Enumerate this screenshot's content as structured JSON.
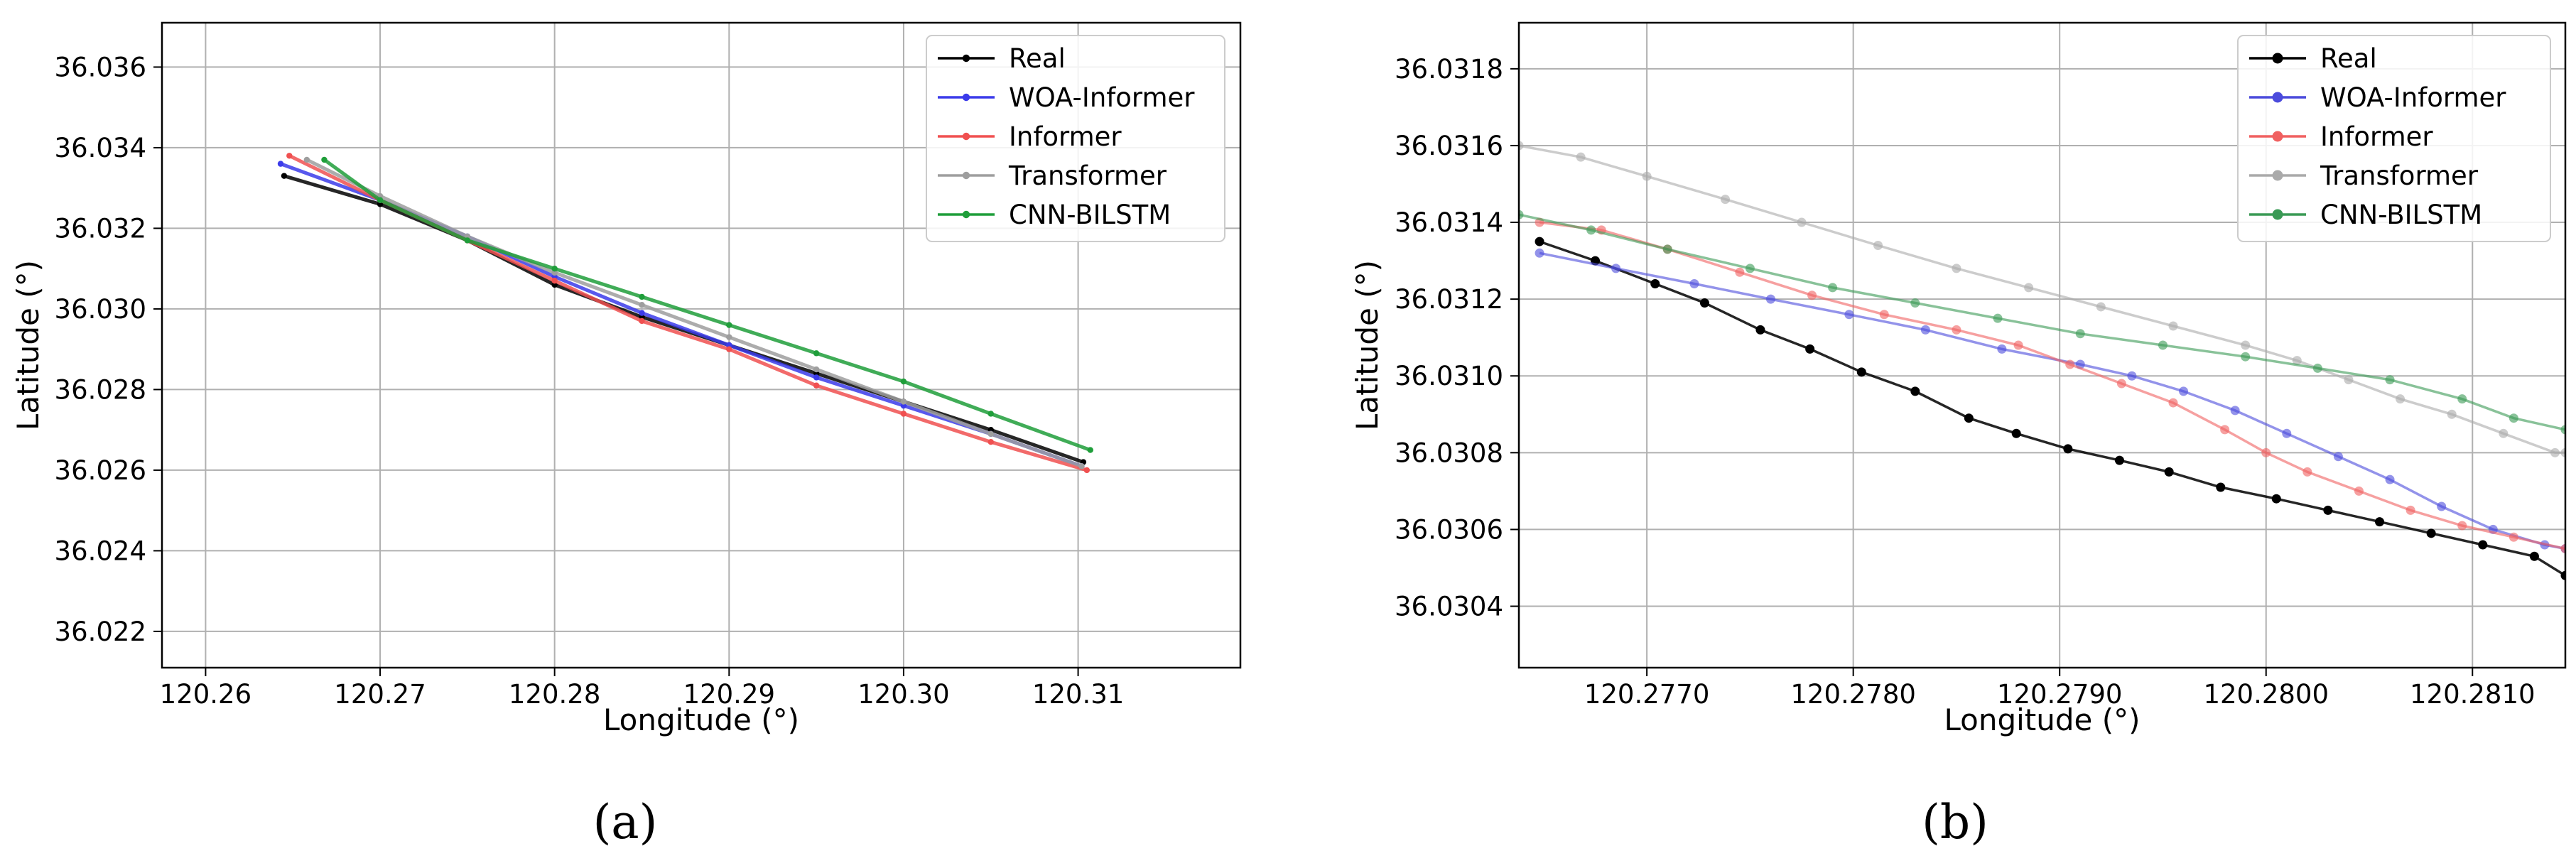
{
  "chart_data": [
    {
      "type": "line",
      "panel_label": "(a)",
      "title": "",
      "xlabel": "Longitude (°)",
      "ylabel": "Latitude (°)",
      "xlim": [
        120.2575,
        120.3193
      ],
      "ylim": [
        36.0211,
        36.0371
      ],
      "xticks": [
        120.26,
        120.27,
        120.28,
        120.29,
        120.3,
        120.31
      ],
      "xtick_labels": [
        "120.26",
        "120.27",
        "120.28",
        "120.29",
        "120.30",
        "120.31"
      ],
      "yticks": [
        36.022,
        36.024,
        36.026,
        36.028,
        36.03,
        36.032,
        36.034,
        36.036
      ],
      "ytick_labels": [
        "36.022",
        "36.024",
        "36.026",
        "36.028",
        "36.030",
        "36.032",
        "36.034",
        "36.036"
      ],
      "grid": true,
      "legend_position": "top-right",
      "series": [
        {
          "name": "Real",
          "color": "#000000",
          "x": [
            120.2645,
            120.27,
            120.275,
            120.28,
            120.285,
            120.29,
            120.295,
            120.3,
            120.305,
            120.3103
          ],
          "y": [
            36.0333,
            36.0326,
            36.0317,
            36.0306,
            36.0298,
            36.0291,
            36.0284,
            36.0277,
            36.027,
            36.0262
          ]
        },
        {
          "name": "WOA-Informer",
          "color": "#3b3bea",
          "x": [
            120.2643,
            120.27,
            120.275,
            120.28,
            120.285,
            120.29,
            120.295,
            120.3,
            120.305,
            120.3102
          ],
          "y": [
            36.0336,
            36.0327,
            36.0318,
            36.0308,
            36.0299,
            36.0291,
            36.0283,
            36.0276,
            36.0269,
            36.0261
          ]
        },
        {
          "name": "Informer",
          "color": "#f05050",
          "x": [
            120.2648,
            120.27,
            120.275,
            120.28,
            120.285,
            120.29,
            120.295,
            120.3,
            120.305,
            120.3105
          ],
          "y": [
            36.0338,
            36.0327,
            36.0317,
            36.0307,
            36.0297,
            36.029,
            36.0281,
            36.0274,
            36.0267,
            36.026
          ]
        },
        {
          "name": "Transformer",
          "color": "#9e9e9e",
          "x": [
            120.2658,
            120.27,
            120.275,
            120.28,
            120.285,
            120.29,
            120.295,
            120.3,
            120.305,
            120.3102
          ],
          "y": [
            36.0337,
            36.0328,
            36.0318,
            36.0309,
            36.0301,
            36.0293,
            36.0285,
            36.0277,
            36.0269,
            36.0261
          ]
        },
        {
          "name": "CNN-BILSTM",
          "color": "#1f9e3a",
          "x": [
            120.2668,
            120.27,
            120.275,
            120.28,
            120.285,
            120.29,
            120.295,
            120.3,
            120.305,
            120.3107
          ],
          "y": [
            36.0337,
            36.0327,
            36.0317,
            36.031,
            36.0303,
            36.0296,
            36.0289,
            36.0282,
            36.0274,
            36.0265
          ]
        }
      ]
    },
    {
      "type": "line",
      "panel_label": "(b)",
      "title": "",
      "xlabel": "Longitude (°)",
      "ylabel": "Latitude (°)",
      "xlim": [
        120.27638,
        120.28145
      ],
      "ylim": [
        36.03024,
        36.03192
      ],
      "xticks": [
        120.277,
        120.278,
        120.279,
        120.28,
        120.281
      ],
      "xtick_labels": [
        "120.2770",
        "120.2780",
        "120.2790",
        "120.2800",
        "120.2810"
      ],
      "yticks": [
        36.0304,
        36.0306,
        36.0308,
        36.031,
        36.0312,
        36.0314,
        36.0316,
        36.0318
      ],
      "ytick_labels": [
        "36.0304",
        "36.0306",
        "36.0308",
        "36.0310",
        "36.0312",
        "36.0314",
        "36.0316",
        "36.0318"
      ],
      "grid": true,
      "legend_position": "top-right",
      "series": [
        {
          "name": "Real",
          "color": "#000000",
          "x": [
            120.27648,
            120.27675,
            120.27704,
            120.27728,
            120.27755,
            120.27779,
            120.27804,
            120.2783,
            120.27856,
            120.27879,
            120.27904,
            120.27929,
            120.27953,
            120.27978,
            120.28005,
            120.2803,
            120.28055,
            120.2808,
            120.28105,
            120.2813,
            120.28145
          ],
          "y": [
            36.03135,
            36.0313,
            36.03124,
            36.03119,
            36.03112,
            36.03107,
            36.03101,
            36.03096,
            36.03089,
            36.03085,
            36.03081,
            36.03078,
            36.03075,
            36.03071,
            36.03068,
            36.03065,
            36.03062,
            36.03059,
            36.03056,
            36.03053,
            36.03048
          ]
        },
        {
          "name": "WOA-Informer",
          "color": "#4b4bdc",
          "x": [
            120.27648,
            120.27685,
            120.27723,
            120.2776,
            120.27798,
            120.27835,
            120.27872,
            120.2791,
            120.27935,
            120.2796,
            120.27985,
            120.2801,
            120.28035,
            120.2806,
            120.28085,
            120.2811,
            120.28135,
            120.28145
          ],
          "y": [
            36.03132,
            36.03128,
            36.03124,
            36.0312,
            36.03116,
            36.03112,
            36.03107,
            36.03103,
            36.031,
            36.03096,
            36.03091,
            36.03085,
            36.03079,
            36.03073,
            36.03066,
            36.0306,
            36.03056,
            36.03055
          ]
        },
        {
          "name": "Informer",
          "color": "#f06060",
          "x": [
            120.27648,
            120.27678,
            120.2771,
            120.27745,
            120.2778,
            120.27815,
            120.2785,
            120.2788,
            120.27905,
            120.2793,
            120.27955,
            120.2798,
            120.28,
            120.2802,
            120.28045,
            120.2807,
            120.28095,
            120.2812,
            120.28145
          ],
          "y": [
            36.0314,
            36.03138,
            36.03133,
            36.03127,
            36.03121,
            36.03116,
            36.03112,
            36.03108,
            36.03103,
            36.03098,
            36.03093,
            36.03086,
            36.0308,
            36.03075,
            36.0307,
            36.03065,
            36.03061,
            36.03058,
            36.03055
          ]
        },
        {
          "name": "Transformer",
          "color": "#aaaaaa",
          "x": [
            120.27638,
            120.27668,
            120.277,
            120.27738,
            120.27775,
            120.27812,
            120.2785,
            120.27885,
            120.2792,
            120.27955,
            120.2799,
            120.28015,
            120.2804,
            120.28065,
            120.2809,
            120.28115,
            120.2814,
            120.28145
          ],
          "y": [
            36.0316,
            36.03157,
            36.03152,
            36.03146,
            36.0314,
            36.03134,
            36.03128,
            36.03123,
            36.03118,
            36.03113,
            36.03108,
            36.03104,
            36.03099,
            36.03094,
            36.0309,
            36.03085,
            36.0308,
            36.0308
          ]
        },
        {
          "name": "CNN-BILSTM",
          "color": "#3a9a55",
          "x": [
            120.27638,
            120.27673,
            120.2771,
            120.2775,
            120.2779,
            120.2783,
            120.2787,
            120.2791,
            120.2795,
            120.2799,
            120.28025,
            120.2806,
            120.28095,
            120.2812,
            120.28145
          ],
          "y": [
            36.03142,
            36.03138,
            36.03133,
            36.03128,
            36.03123,
            36.03119,
            36.03115,
            36.03111,
            36.03108,
            36.03105,
            36.03102,
            36.03099,
            36.03094,
            36.03089,
            36.03086
          ]
        }
      ]
    }
  ]
}
